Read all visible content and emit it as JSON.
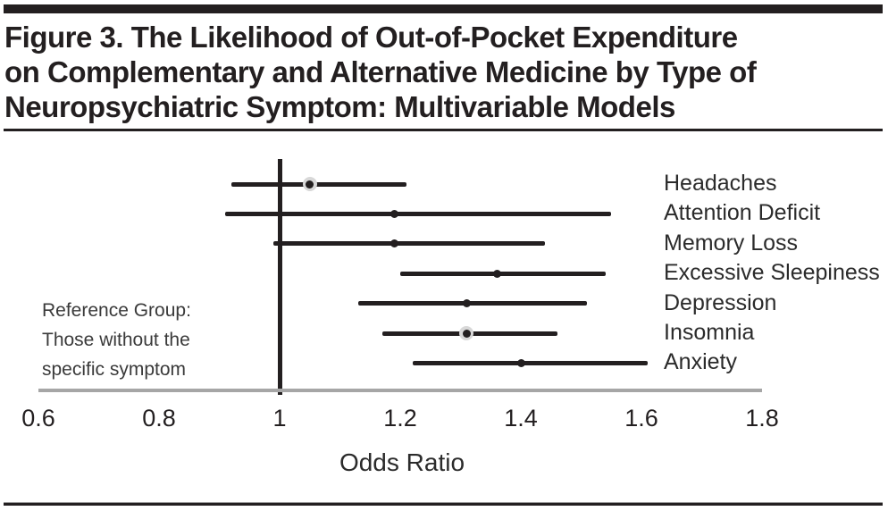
{
  "figure": {
    "title_lines": [
      "Figure 3. The Likelihood of Out-of-Pocket Expenditure",
      "on Complementary and Alternative Medicine by Type of",
      "Neuropsychiatric Symptom: Multivariable Models"
    ],
    "reference_note_lines": [
      "Reference Group:",
      "Those without the",
      "specific symptom"
    ]
  },
  "chart_data": {
    "type": "scatter",
    "subtype": "forest-plot",
    "title": "Figure 3. The Likelihood of Out-of-Pocket Expenditure on Complementary and Alternative Medicine by Type of Neuropsychiatric Symptom: Multivariable Models",
    "xlabel": "Odds Ratio",
    "ylabel": "",
    "xlim": [
      0.6,
      1.9
    ],
    "x_ticks": [
      0.6,
      0.8,
      1,
      1.2,
      1.4,
      1.6,
      1.8
    ],
    "x_tick_labels": [
      "0.6",
      "0.8",
      "1",
      "1.2",
      "1.4",
      "1.6",
      "1.8"
    ],
    "reference_line_x": 1,
    "grid": false,
    "legend_position": "none",
    "series": [
      {
        "label": "Headaches",
        "odds_ratio": 1.05,
        "ci_low": 0.92,
        "ci_high": 1.21,
        "halo": true
      },
      {
        "label": "Attention Deficit",
        "odds_ratio": 1.19,
        "ci_low": 0.91,
        "ci_high": 1.55,
        "halo": false
      },
      {
        "label": "Memory Loss",
        "odds_ratio": 1.19,
        "ci_low": 0.99,
        "ci_high": 1.44,
        "halo": false
      },
      {
        "label": "Excessive Sleepiness",
        "odds_ratio": 1.36,
        "ci_low": 1.2,
        "ci_high": 1.54,
        "halo": false
      },
      {
        "label": "Depression",
        "odds_ratio": 1.31,
        "ci_low": 1.13,
        "ci_high": 1.51,
        "halo": false
      },
      {
        "label": "Insomnia",
        "odds_ratio": 1.31,
        "ci_low": 1.17,
        "ci_high": 1.46,
        "halo": true
      },
      {
        "label": "Anxiety",
        "odds_ratio": 1.4,
        "ci_low": 1.22,
        "ci_high": 1.61,
        "halo": false
      }
    ],
    "colors": {
      "line": "#231f20",
      "marker": "#231f20",
      "marker_halo": "#d8d8d8",
      "axis": "#a6a6a6",
      "text": "#2b2b2b",
      "rule": "#231f20"
    }
  }
}
